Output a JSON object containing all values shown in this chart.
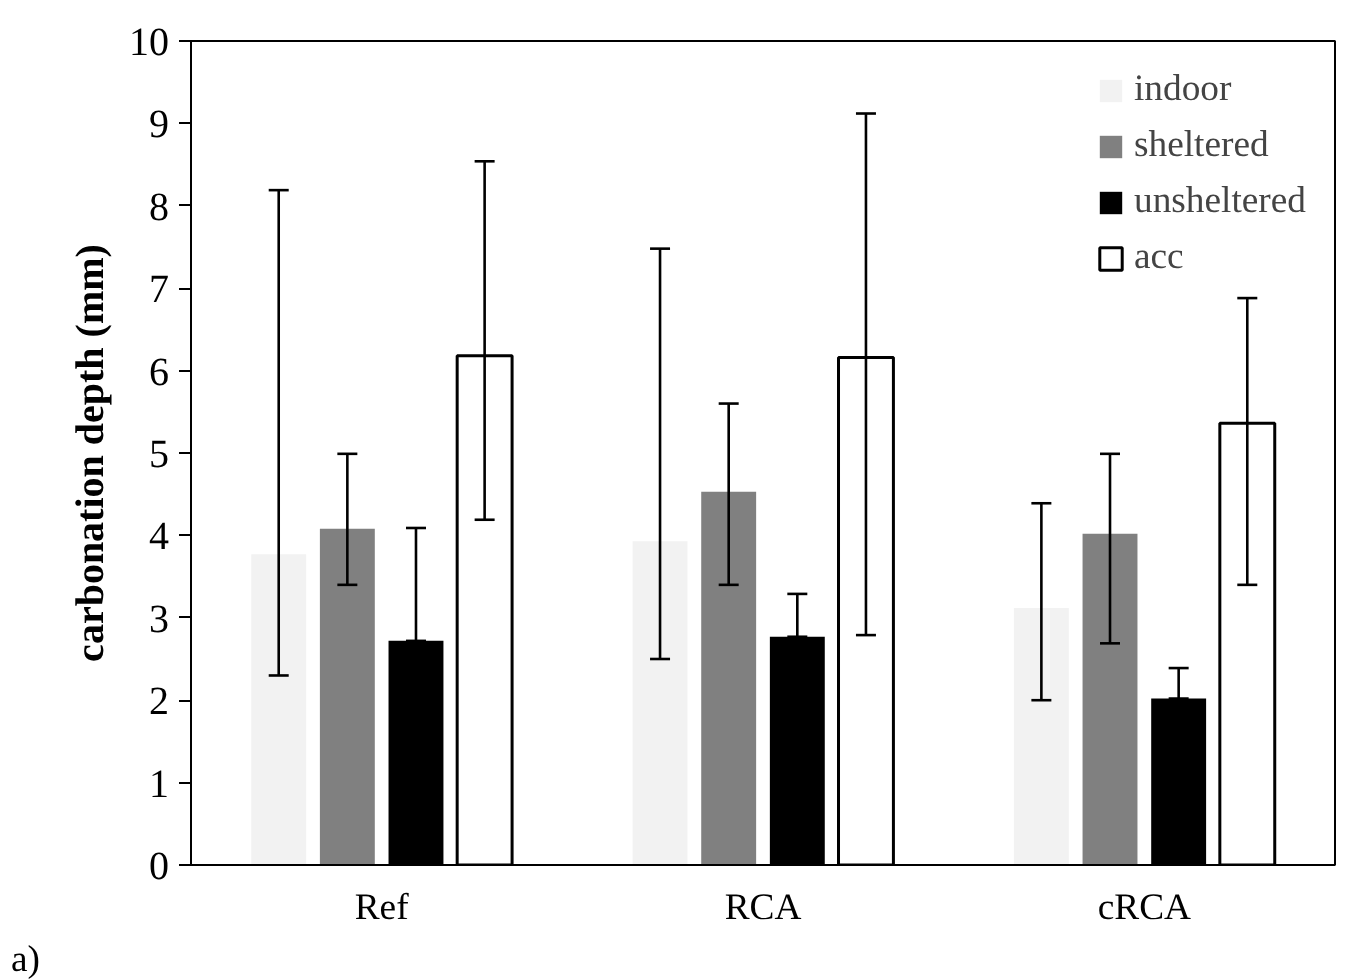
{
  "chart_data": {
    "type": "bar",
    "ylabel": "carbonation depth (mm)",
    "categories": [
      "Ref",
      "RCA",
      "cRCA"
    ],
    "ylim": [
      0,
      10
    ],
    "yticks": [
      0,
      1,
      2,
      3,
      4,
      5,
      6,
      7,
      8,
      9,
      10
    ],
    "grid": false,
    "legend": "top right",
    "annotations": [
      "a)"
    ],
    "series": [
      {
        "name": "indoor",
        "color": "#f2f2f2",
        "values": [
          3.77,
          3.93,
          3.12
        ],
        "errors": [
          [
            2.3,
            8.19
          ],
          [
            2.5,
            7.48
          ],
          [
            2.0,
            4.39
          ]
        ]
      },
      {
        "name": "sheltered",
        "color": "#808080",
        "values": [
          4.08,
          4.53,
          4.02
        ],
        "errors": [
          [
            3.4,
            4.99
          ],
          [
            3.4,
            5.6
          ],
          [
            2.69,
            4.99
          ]
        ]
      },
      {
        "name": "unsheltered",
        "color": "#000000",
        "values": [
          2.72,
          2.77,
          2.02
        ],
        "errors": [
          [
            2.72,
            4.09
          ],
          [
            2.77,
            3.29
          ],
          [
            2.02,
            2.39
          ]
        ]
      },
      {
        "name": "acc",
        "color": "#ffffff",
        "values": [
          6.18,
          6.16,
          5.36
        ],
        "errors": [
          [
            4.19,
            8.54
          ],
          [
            2.79,
            9.12
          ],
          [
            3.4,
            6.88
          ]
        ]
      }
    ]
  }
}
